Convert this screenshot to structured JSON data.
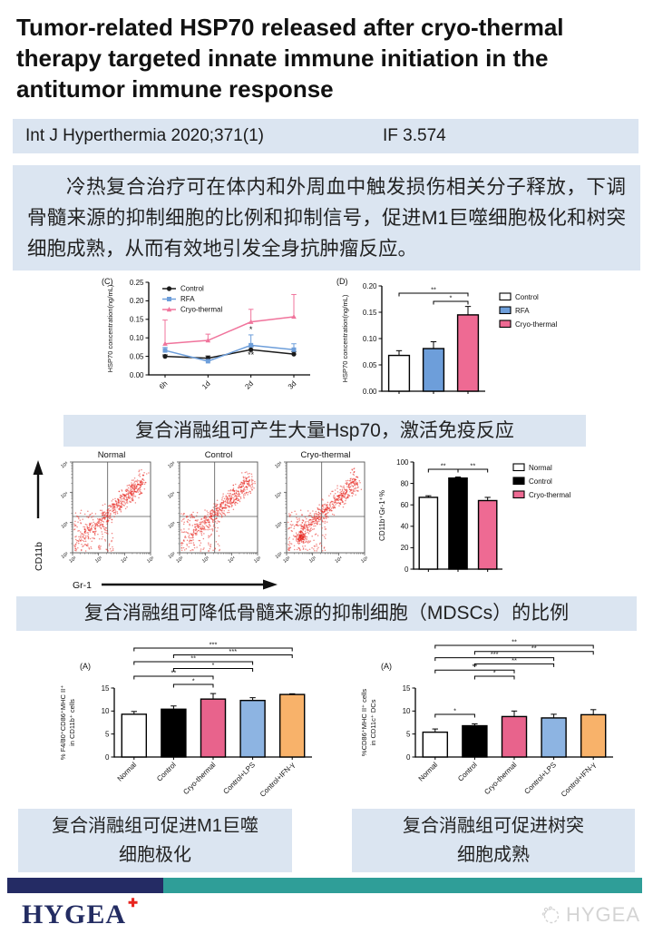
{
  "title": "Tumor-related HSP70 released after cryo-thermal therapy targeted innate immune initiation in the antitumor immune response",
  "journal": {
    "name": "Int J Hyperthermia 2020;371(1)",
    "impact_factor": "IF 3.574"
  },
  "abstract": "冷热复合治疗可在体内和外周血中触发损伤相关分子释放，下调骨髓来源的抑制细胞的比例和抑制信号，促进M1巨噬细胞极化和树突细胞成熟，从而有效地引发全身抗肿瘤反应。",
  "captions": {
    "hsp70": "复合消融组可产生大量Hsp70，激活免疫反应",
    "mdsc": "复合消融组可降低骨髓来源的抑制细胞（MDSCs）的比例",
    "macrophage": "复合消融组可促进M1巨噬\n细胞极化",
    "dc": "复合消融组可促进树突\n细胞成熟"
  },
  "footer": {
    "logo_text": "HYGEA",
    "logo_cross": "✚",
    "watermark_text": "HYGEA"
  },
  "colors": {
    "panel_bg": "#dbe5f1",
    "footer_navy": "#242b64",
    "footer_teal": "#2f9e98",
    "logo_navy": "#232c62",
    "logo_red": "#e8251f",
    "watermark_gray": "#d4d4d4",
    "pink": "#ee6a93",
    "blue": "#6d9eda",
    "light_blue": "#8db4e2",
    "orange": "#f8b26a",
    "dot_red": "#e8241e"
  },
  "chart_data": [
    {
      "id": "panel_c",
      "type": "line",
      "panel_label": "(C)",
      "x": [
        "6h",
        "1d",
        "2d",
        "3d"
      ],
      "series": [
        {
          "name": "Control",
          "marker": "circle",
          "color": "#1a1a1a",
          "values": [
            0.05,
            0.045,
            0.068,
            0.056
          ],
          "errors": [
            0.004,
            0.006,
            0.008,
            0.006
          ]
        },
        {
          "name": "RFA",
          "marker": "square",
          "color": "#6d9eda",
          "values": [
            0.066,
            0.037,
            0.08,
            0.068
          ],
          "errors": [
            0.008,
            0.006,
            0.028,
            0.016
          ]
        },
        {
          "name": "Cryo-thermal",
          "marker": "triangle",
          "color": "#f0749c",
          "values": [
            0.084,
            0.093,
            0.143,
            0.157
          ],
          "errors": [
            0.064,
            0.017,
            0.034,
            0.06
          ]
        }
      ],
      "ylabel_lines": [
        "HSP70 concentration(ng/mL)"
      ],
      "ylim": [
        0,
        0.25
      ],
      "ytick_step": 0.05,
      "annotations": [
        {
          "xi": 2,
          "y": 0.115,
          "text": "*"
        },
        {
          "xi": 2,
          "y": 0.046,
          "text": "**"
        }
      ]
    },
    {
      "id": "panel_d",
      "type": "bar",
      "panel_label": "(D)",
      "categories": [
        "Control",
        "RFA",
        "Cryo-thermal"
      ],
      "values": [
        0.068,
        0.081,
        0.145
      ],
      "errors": [
        0.009,
        0.013,
        0.016
      ],
      "colors": [
        "#ffffff",
        "#6d9eda",
        "#ee6a93"
      ],
      "legend": [
        "Control",
        "RFA",
        "Cryo-thermal"
      ],
      "ylabel_lines": [
        "HSP70 concentration(ng/mL)"
      ],
      "ylim": [
        0,
        0.2
      ],
      "ytick_step": 0.05,
      "significance": [
        {
          "from": 0,
          "to": 2,
          "label": "**"
        },
        {
          "from": 1,
          "to": 2,
          "label": "*"
        }
      ]
    },
    {
      "id": "flow",
      "type": "scatter_flow",
      "panels": [
        "Normal",
        "Control",
        "Cryo-thermal"
      ],
      "xlabel": "Gr-1",
      "ylabel": "CD11b",
      "axis_ticks": [
        "10²",
        "10³",
        "10⁴",
        "10⁵"
      ],
      "dot_color": "#e8241e"
    },
    {
      "id": "mdsc",
      "type": "bar",
      "categories": [
        "Normal",
        "Control",
        "Cryo-thermal"
      ],
      "values": [
        67,
        85,
        64
      ],
      "errors": [
        1.5,
        1.0,
        3.0
      ],
      "colors": [
        "#ffffff",
        "#000000",
        "#ee6a93"
      ],
      "legend": [
        "Normal",
        "Control",
        "Cryo-thermal"
      ],
      "ylabel_lines": [
        "CD11b⁺Gr-1⁺%"
      ],
      "ylim": [
        0,
        100
      ],
      "ytick_step": 20,
      "significance": [
        {
          "from": 0,
          "to": 1,
          "label": "**"
        },
        {
          "from": 1,
          "to": 2,
          "label": "**"
        }
      ]
    },
    {
      "id": "macrophage",
      "type": "bar",
      "panel_label": "(A)",
      "categories": [
        "Normal",
        "Control",
        "Cryo-thermal",
        "Control+LPS",
        "Control+IFN-γ"
      ],
      "values": [
        9.3,
        10.4,
        12.6,
        12.3,
        13.6
      ],
      "errors": [
        0.6,
        0.7,
        1.2,
        0.6,
        0.15
      ],
      "colors": [
        "#ffffff",
        "#000000",
        "#e8638c",
        "#8db4e2",
        "#f8b26a"
      ],
      "ylabel_lines": [
        "% F4/80⁺CD86⁺MHC II⁺",
        "in CD11b⁺ cells"
      ],
      "ylim": [
        0,
        15
      ],
      "ytick_step": 5,
      "significance": [
        {
          "from": 0,
          "to": 4,
          "label": "***"
        },
        {
          "from": 1,
          "to": 4,
          "label": "***"
        },
        {
          "from": 0,
          "to": 3,
          "label": "**"
        },
        {
          "from": 1,
          "to": 3,
          "label": "*"
        },
        {
          "from": 0,
          "to": 2,
          "label": "**"
        },
        {
          "from": 1,
          "to": 2,
          "label": "*"
        }
      ]
    },
    {
      "id": "dc",
      "type": "bar",
      "panel_label": "(A)",
      "categories": [
        "Normal",
        "Control",
        "Cryo-thermal",
        "Control+LPS",
        "Control+IFN-γ"
      ],
      "values": [
        5.4,
        6.8,
        8.8,
        8.5,
        9.2
      ],
      "errors": [
        0.7,
        0.4,
        1.2,
        0.8,
        1.1
      ],
      "colors": [
        "#ffffff",
        "#000000",
        "#e8638c",
        "#8db4e2",
        "#f8b26a"
      ],
      "ylabel_lines": [
        "%CD86⁺MHC II⁺ cells",
        "in CD11c⁺ DCs"
      ],
      "ylim": [
        0,
        15
      ],
      "ytick_step": 5,
      "significance": [
        {
          "from": 0,
          "to": 4,
          "label": "**"
        },
        {
          "from": 1,
          "to": 4,
          "label": "**"
        },
        {
          "from": 0,
          "to": 3,
          "label": "***"
        },
        {
          "from": 1,
          "to": 3,
          "label": "**"
        },
        {
          "from": 0,
          "to": 2,
          "label": "**"
        },
        {
          "from": 1,
          "to": 2,
          "label": "*"
        },
        {
          "from": 0,
          "to": 1,
          "label": "*"
        }
      ]
    }
  ]
}
